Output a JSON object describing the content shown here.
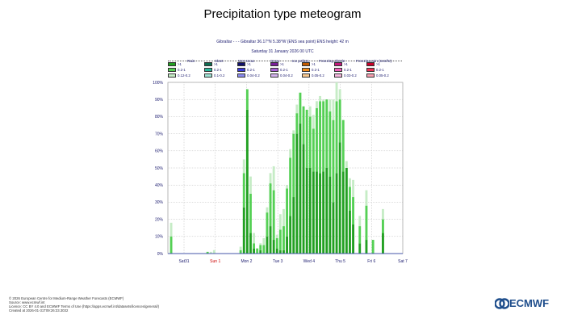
{
  "title": "Precipitation type meteogram",
  "subtitle_line1": "Gibraltar - - - Gibraltar 36.17°N 5.38°W (ENS sea point) ENS height: 42 m",
  "subtitle_line2": "Saturday 31 January 2026 00 UTC",
  "legend": {
    "groups": [
      {
        "name": "Rain",
        "colors": [
          "#22a022",
          "#55d055",
          "#c6ecc6"
        ],
        "labels": [
          ">1",
          "0.2-1",
          "0.12-0.2"
        ]
      },
      {
        "name": "Sleet",
        "colors": [
          "#0e6b50",
          "#2ab69a",
          "#9fe3d4"
        ],
        "labels": [
          ">1",
          "0.2-1",
          "0.1-0.2"
        ]
      },
      {
        "name": "Wet snow",
        "colors": [
          "#10106a",
          "#3a3adc",
          "#8c8cf0"
        ],
        "labels": [
          ">1",
          "0.2-1",
          "0.04-0.2"
        ]
      },
      {
        "name": "Snow",
        "colors": [
          "#7a1f9a",
          "#a95fd6",
          "#d5b3ee"
        ],
        "labels": [
          ">1",
          "0.2-1",
          "0.04-0.2"
        ]
      },
      {
        "name": "Ice pellets",
        "colors": [
          "#c25a00",
          "#f28c1a",
          "#f8c98f"
        ],
        "labels": [
          ">1",
          "0.2-1",
          "0.05-0.2"
        ]
      },
      {
        "name": "Freezing drizzle",
        "colors": [
          "#c0187a",
          "#ee5fb8",
          "#f6b8de"
        ],
        "labels": [
          ">1",
          "0.2-1",
          "0.03-0.2"
        ]
      },
      {
        "name": "Freezing rain (mm/hr)",
        "colors": [
          "#c8002a",
          "#ee3355",
          "#f7a0b0"
        ],
        "labels": [
          ">1",
          "0.2-1",
          "0.05-0.2"
        ]
      }
    ]
  },
  "chart_data": {
    "type": "bar",
    "stacked": true,
    "y_tick_labels": [
      "0%",
      "10%",
      "20%",
      "30%",
      "40%",
      "50%",
      "60%",
      "70%",
      "80%",
      "90%",
      "100%"
    ],
    "ylim": [
      0,
      100
    ],
    "x_tick_labels": [
      "Sat31",
      "Sun 1",
      "Mon 2",
      "Tue 3",
      "Wed 4",
      "Thu 5",
      "Fri 6",
      "Sat 7"
    ],
    "x_tick_colors": [
      "#1a1a6e",
      "#cc0000",
      "#1a1a6e",
      "#1a1a6e",
      "#1a1a6e",
      "#1a1a6e",
      "#1a1a6e",
      "#1a1a6e"
    ],
    "series": [
      {
        "name": ">1",
        "color": "#22a022",
        "values": [
          0,
          0,
          0,
          0,
          0,
          0,
          0,
          0,
          0,
          0,
          0,
          0,
          0,
          0,
          0,
          0,
          0,
          0,
          0,
          0,
          0,
          0,
          27,
          84,
          12,
          3,
          0,
          2,
          0,
          10,
          16,
          8,
          3,
          2,
          2,
          10,
          22,
          33,
          70,
          76,
          64,
          50,
          50,
          48,
          48,
          47,
          48,
          50,
          45,
          30,
          47,
          65,
          48,
          50,
          25,
          17,
          0,
          6,
          0,
          8,
          0,
          0,
          0,
          0,
          12,
          0,
          0,
          0,
          0,
          0
        ]
      },
      {
        "name": "0.2-1",
        "color": "#55d055",
        "values": [
          10,
          0,
          0,
          0,
          0,
          0,
          0,
          0,
          0,
          0,
          0,
          1,
          0,
          0,
          0,
          0,
          0,
          0,
          0,
          0,
          0,
          2,
          20,
          12,
          23,
          3,
          3,
          3,
          5,
          14,
          25,
          29,
          6,
          12,
          14,
          28,
          34,
          37,
          12,
          18,
          22,
          34,
          30,
          25,
          37,
          42,
          41,
          40,
          38,
          48,
          42,
          25,
          30,
          0,
          14,
          16,
          0,
          10,
          0,
          20,
          0,
          8,
          0,
          0,
          8,
          0,
          0,
          0,
          0,
          0
        ]
      },
      {
        "name": "0.12-0.2",
        "color": "#c6ecc6",
        "values": [
          8,
          0,
          0,
          0,
          0,
          0,
          0,
          0,
          0,
          0,
          0,
          0,
          1,
          2,
          0,
          0,
          0,
          0,
          0,
          0,
          0,
          2,
          8,
          0,
          10,
          6,
          0,
          1,
          4,
          3,
          6,
          14,
          2,
          9,
          10,
          2,
          5,
          2,
          5,
          0,
          0,
          0,
          6,
          8,
          4,
          3,
          1,
          0,
          7,
          12,
          11,
          6,
          0,
          4,
          5,
          10,
          0,
          6,
          0,
          9,
          0,
          0,
          0,
          0,
          6,
          0,
          0,
          0,
          0,
          0
        ]
      }
    ]
  },
  "footer": [
    "© 2026 European Centre for Medium-Range Weather Forecasts (ECMWF)",
    "Source: www.ecmwf.int",
    "Licence: CC BY 4.0 and ECMWF Terms of Use (https://apps.ecmwf.int/datasets/licences/general/)",
    "Created at 2026-01-31T09:26:33.3032"
  ],
  "logo_text": "ECMWF"
}
